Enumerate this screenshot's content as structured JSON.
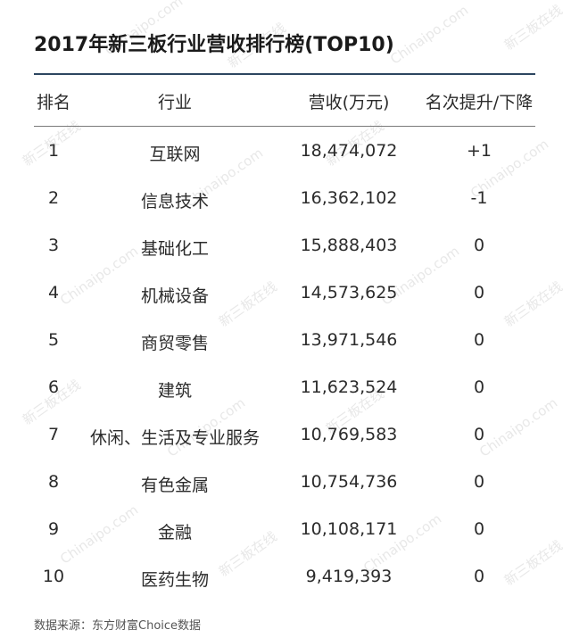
{
  "title": "2017年新三板行业营收排行榜(TOP10)",
  "columns": {
    "rank": "排名",
    "industry": "行业",
    "revenue": "营收(万元)",
    "change": "名次提升/下降"
  },
  "rows": [
    {
      "rank": "1",
      "industry": "互联网",
      "revenue": "18,474,072",
      "change": "+1"
    },
    {
      "rank": "2",
      "industry": "信息技术",
      "revenue": "16,362,102",
      "change": "-1"
    },
    {
      "rank": "3",
      "industry": "基础化工",
      "revenue": "15,888,403",
      "change": "0"
    },
    {
      "rank": "4",
      "industry": "机械设备",
      "revenue": "14,573,625",
      "change": "0"
    },
    {
      "rank": "5",
      "industry": "商贸零售",
      "revenue": "13,971,546",
      "change": "0"
    },
    {
      "rank": "6",
      "industry": "建筑",
      "revenue": "11,623,524",
      "change": "0"
    },
    {
      "rank": "7",
      "industry": "休闲、生活及专业服务",
      "revenue": "10,769,583",
      "change": "0"
    },
    {
      "rank": "8",
      "industry": "有色金属",
      "revenue": "10,754,736",
      "change": "0"
    },
    {
      "rank": "9",
      "industry": "金融",
      "revenue": "10,108,171",
      "change": "0"
    },
    {
      "rank": "10",
      "industry": "医药生物",
      "revenue": "9,419,393",
      "change": "0"
    }
  ],
  "footer": "数据来源：东方财富Choice数据",
  "watermark": {
    "text_cn": "新三板在线",
    "text_en": "Chinaipo.com"
  },
  "colors": {
    "rule": "#2d4660",
    "text": "#2b2b2b",
    "watermark": "#e8e8e8"
  }
}
